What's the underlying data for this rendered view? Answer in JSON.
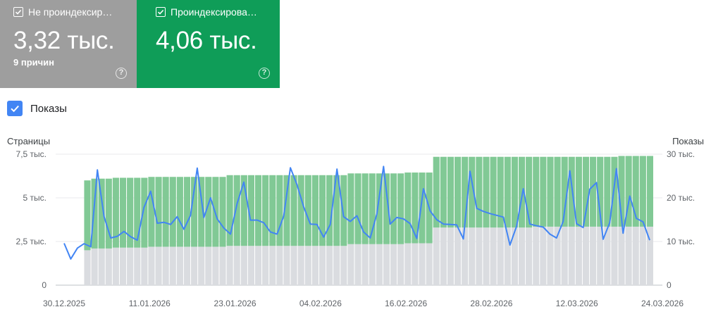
{
  "cards": {
    "not_indexed": {
      "label": "Не проиндексир…",
      "value": "3,32 тыс.",
      "sub": "9 причин",
      "color": "#9e9e9e"
    },
    "indexed": {
      "label": "Проиндексирова…",
      "value": "4,06 тыс.",
      "color": "#0f9d58"
    }
  },
  "impressions_toggle": {
    "label": "Показы",
    "color": "#4285f4"
  },
  "chart_data": {
    "type": "bar",
    "left_axis_title": "Страницы",
    "right_axis_title": "Показы",
    "left_ticks": [
      "0",
      "2,5 тыс.",
      "5 тыс.",
      "7,5 тыс."
    ],
    "right_ticks": [
      "0",
      "10 тыс.",
      "20 тыс.",
      "30 тыс."
    ],
    "x_labels": [
      "30.12.2025",
      "11.01.2026",
      "23.01.2026",
      "04.02.2026",
      "16.02.2026",
      "28.02.2026",
      "12.03.2026",
      "24.03.2026"
    ],
    "ylim_left": [
      0,
      7500
    ],
    "ylim_right": [
      0,
      30000
    ],
    "stack_groups": [
      {
        "count": 4,
        "not_indexed": 0,
        "indexed": 0
      },
      {
        "count": 1,
        "not_indexed": 2000,
        "indexed": 4000
      },
      {
        "count": 3,
        "not_indexed": 2100,
        "indexed": 4000
      },
      {
        "count": 5,
        "not_indexed": 2150,
        "indexed": 4000
      },
      {
        "count": 11,
        "not_indexed": 2200,
        "indexed": 4000
      },
      {
        "count": 17,
        "not_indexed": 2250,
        "indexed": 4050
      },
      {
        "count": 8,
        "not_indexed": 2350,
        "indexed": 4050
      },
      {
        "count": 4,
        "not_indexed": 2400,
        "indexed": 4050
      },
      {
        "count": 14,
        "not_indexed": 3300,
        "indexed": 4050
      },
      {
        "count": 12,
        "not_indexed": 3350,
        "indexed": 4000
      },
      {
        "count": 5,
        "not_indexed": 3350,
        "indexed": 4050
      }
    ],
    "impressions": [
      9600,
      6000,
      8500,
      9500,
      8800,
      26400,
      15700,
      10800,
      11200,
      12300,
      11100,
      10300,
      17800,
      21500,
      14200,
      14400,
      13900,
      15700,
      12800,
      16000,
      26800,
      15500,
      20000,
      15200,
      13100,
      11700,
      18700,
      23600,
      14900,
      14900,
      14300,
      12200,
      11700,
      15800,
      26900,
      23000,
      17900,
      14000,
      13900,
      11000,
      13900,
      26600,
      15700,
      14600,
      15900,
      12200,
      10800,
      16300,
      27200,
      14000,
      15500,
      15200,
      14100,
      10700,
      22100,
      17000,
      15000,
      14000,
      13900,
      13800,
      10600,
      26100,
      17600,
      16900,
      16400,
      16000,
      15600,
      9200,
      13500,
      22100,
      14000,
      13600,
      13300,
      11700,
      10800,
      14600,
      26200,
      14100,
      13200,
      22000,
      23500,
      10500,
      14300,
      26700,
      11900,
      20400,
      15300,
      14500,
      10300
    ]
  },
  "colors": {
    "indexed_bar": "#81c995",
    "not_indexed_bar": "#dadce0",
    "line": "#4285f4",
    "grid": "#e8eaed"
  }
}
